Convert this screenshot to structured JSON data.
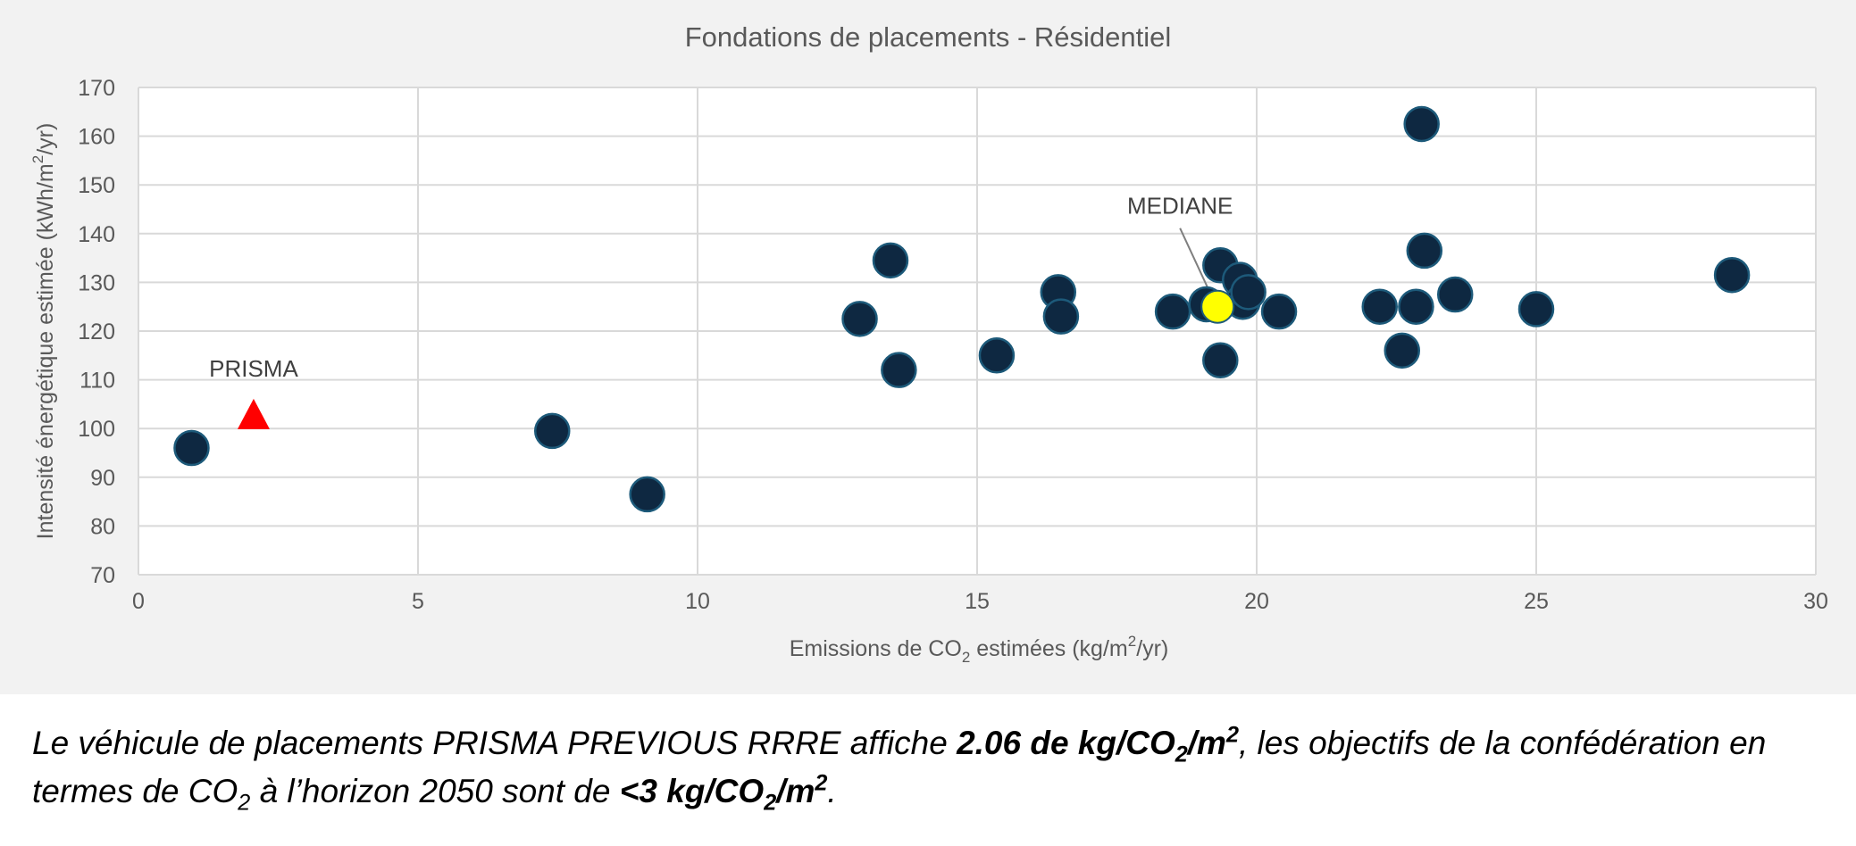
{
  "colors": {
    "panel_bg": "#f2f2f2",
    "plot_bg": "#ffffff",
    "gridline": "#d9d9d9",
    "point_fill": "#0e2841",
    "point_stroke": "#1d5a7a",
    "median_fill": "#ffff00",
    "prisma_marker": "#ff0000",
    "text": "#595959"
  },
  "chart_data": {
    "type": "scatter",
    "title": "Fondations de placements - Résidentiel",
    "xlabel": {
      "prefix": "Emissions de CO",
      "sub": "2",
      "suffix": " estimées (kg/m",
      "sup": "2",
      "end": "/yr)"
    },
    "ylabel": {
      "prefix": "Intensité énergétique estimée (kWh/m",
      "sup": "2",
      "end": "/yr)"
    },
    "xlim": [
      0,
      30
    ],
    "ylim": [
      70,
      170
    ],
    "xticks": [
      0,
      5,
      10,
      15,
      20,
      25,
      30
    ],
    "yticks": [
      70,
      80,
      90,
      100,
      110,
      120,
      130,
      140,
      150,
      160,
      170
    ],
    "grid": true,
    "series": [
      {
        "name": "Fondations",
        "marker": "circle",
        "points": [
          {
            "x": 0.95,
            "y": 96
          },
          {
            "x": 7.4,
            "y": 99.5
          },
          {
            "x": 9.1,
            "y": 86.5
          },
          {
            "x": 12.9,
            "y": 122.5
          },
          {
            "x": 13.45,
            "y": 134.5
          },
          {
            "x": 13.6,
            "y": 112
          },
          {
            "x": 15.35,
            "y": 115
          },
          {
            "x": 16.45,
            "y": 128
          },
          {
            "x": 16.5,
            "y": 123
          },
          {
            "x": 18.5,
            "y": 124
          },
          {
            "x": 19.1,
            "y": 125.5
          },
          {
            "x": 19.35,
            "y": 133.5
          },
          {
            "x": 19.35,
            "y": 114
          },
          {
            "x": 19.7,
            "y": 130.5
          },
          {
            "x": 19.75,
            "y": 126
          },
          {
            "x": 19.85,
            "y": 128
          },
          {
            "x": 20.4,
            "y": 124
          },
          {
            "x": 22.2,
            "y": 125
          },
          {
            "x": 22.6,
            "y": 116
          },
          {
            "x": 22.85,
            "y": 125
          },
          {
            "x": 22.95,
            "y": 162.5
          },
          {
            "x": 23.0,
            "y": 136.5
          },
          {
            "x": 23.55,
            "y": 127.5
          },
          {
            "x": 25.0,
            "y": 124.5
          },
          {
            "x": 28.5,
            "y": 131.5
          }
        ]
      },
      {
        "name": "MEDIANE",
        "marker": "circle",
        "points": [
          {
            "x": 19.3,
            "y": 125
          }
        ]
      },
      {
        "name": "PRISMA",
        "marker": "triangle",
        "points": [
          {
            "x": 2.06,
            "y": 103
          }
        ]
      }
    ],
    "annotations": [
      {
        "text": "MEDIANE",
        "target": "MEDIANE"
      },
      {
        "text": "PRISMA",
        "target": "PRISMA"
      }
    ]
  },
  "caption": {
    "line1_a": "Le véhicule de placements PRISMA PREVIOUS RRRE affiche ",
    "line1_b_main": "2.06 de kg/CO",
    "line1_b_sub": "2",
    "line1_b_mid": "/m",
    "line1_b_sup": "2",
    "line1_c": ", les objectifs de la confédération en",
    "line2_a": "termes de CO",
    "line2_a_sub": "2",
    "line2_b": " à l’horizon 2050 sont de ",
    "line2_c_main": "<3 kg/CO",
    "line2_c_sub": "2",
    "line2_c_mid": "/m",
    "line2_c_sup": "2",
    "line2_end": "."
  }
}
